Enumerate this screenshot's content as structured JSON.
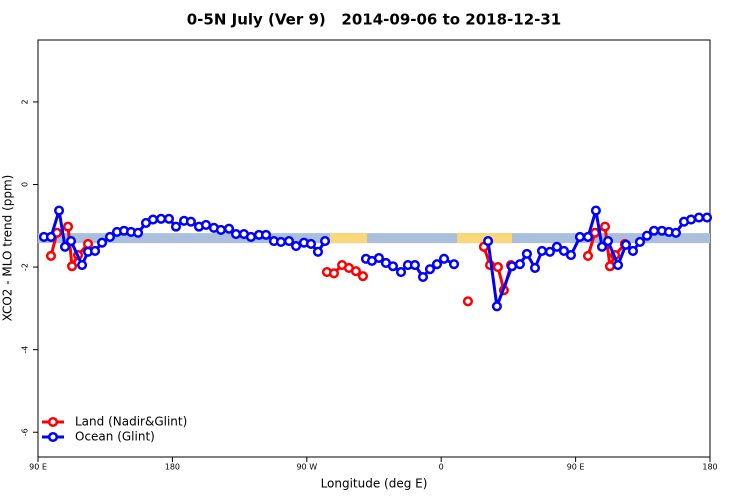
{
  "chart_data": {
    "type": "line",
    "title": "0-5N July (Ver 9)   2014-09-06 to 2018-12-31",
    "x_label": "Longitude (deg E)",
    "y_label": "XCO2 - MLO trend (ppm)",
    "xlim": [
      90,
      540
    ],
    "ylim": [
      -6.6,
      3.5
    ],
    "xticks": [
      {
        "value": 90,
        "label": "90 E"
      },
      180,
      {
        "value": 270,
        "label": "90 W"
      },
      {
        "value": 360,
        "label": "0"
      },
      {
        "value": 450,
        "label": "90 E"
      },
      {
        "value": 540,
        "label": "180"
      }
    ],
    "yticks": [
      2,
      0,
      -2,
      -4,
      -6
    ],
    "legend": "bottom-left",
    "band": {
      "y": -1.3,
      "color": "#a9bfdc",
      "segments": [
        {
          "x": [
            285.5,
            310.3
          ],
          "color": "#f9d77a"
        },
        {
          "x": [
            370.6,
            407.4
          ],
          "color": "#f9d77a"
        }
      ]
    },
    "series": [
      {
        "name": "Land (Nadir&Glint)",
        "color": "#ff0000",
        "x": [
          98.7,
          102.7,
          110.1,
          112.8,
          116.8,
          123.5,
          null,
          283.5,
          288.2,
          293.6,
          298.2,
          302.9,
          307.6,
          null,
          377.9,
          null,
          388.6,
          392.7,
          398.0,
          402.0,
          406.7,
          null,
          458.3,
          463.0,
          469.7,
          473.0,
          476.4,
          483.0
        ],
        "values": [
          -1.73,
          -1.17,
          -1.02,
          -1.98,
          -1.71,
          -1.44,
          null,
          -2.12,
          -2.15,
          -1.95,
          -2.02,
          -2.1,
          -2.22,
          null,
          -2.83,
          null,
          -1.51,
          -1.95,
          -2.0,
          -2.56,
          -1.95,
          null,
          -1.73,
          -1.17,
          -1.02,
          -1.98,
          -1.71,
          -1.44
        ]
      },
      {
        "name": "Ocean (Glint)",
        "color": "#0000ff",
        "x": [
          94.0,
          98.7,
          104.1,
          108.1,
          112.1,
          119.5,
          123.5,
          128.2,
          132.9,
          138.2,
          142.9,
          147.6,
          152.3,
          157.0,
          162.3,
          167.0,
          172.4,
          177.7,
          182.4,
          187.8,
          192.4,
          197.8,
          202.5,
          207.8,
          212.5,
          217.9,
          222.6,
          227.9,
          232.6,
          238.0,
          242.7,
          248.0,
          252.7,
          258.1,
          262.8,
          268.1,
          272.8,
          277.5,
          282.2,
          null,
          309.6,
          313.6,
          318.3,
          323.0,
          327.7,
          333.1,
          337.7,
          342.4,
          347.8,
          352.5,
          357.2,
          361.9,
          368.6,
          null,
          391.4,
          397.3,
          407.4,
          412.7,
          417.4,
          422.8,
          427.5,
          432.8,
          437.5,
          442.2,
          446.9,
          452.9,
          458.3,
          463.6,
          467.7,
          471.7,
          478.4,
          483.7,
          488.4,
          493.1,
          497.8,
          502.5,
          507.8,
          512.5,
          517.2,
          522.6,
          527.3,
          532.6,
          538.0
        ],
        "values": [
          -1.27,
          -1.27,
          -0.63,
          -1.51,
          -1.37,
          -1.95,
          -1.63,
          -1.61,
          -1.41,
          -1.27,
          -1.15,
          -1.12,
          -1.15,
          -1.17,
          -0.93,
          -0.85,
          -0.83,
          -0.83,
          -1.02,
          -0.88,
          -0.9,
          -1.02,
          -0.98,
          -1.05,
          -1.1,
          -1.07,
          -1.2,
          -1.2,
          -1.27,
          -1.22,
          -1.22,
          -1.37,
          -1.39,
          -1.37,
          -1.49,
          -1.41,
          -1.44,
          -1.63,
          -1.37,
          null,
          -1.8,
          -1.85,
          -1.78,
          -1.9,
          -1.98,
          -2.12,
          -1.95,
          -1.95,
          -2.24,
          -2.05,
          -1.93,
          -1.8,
          -1.93,
          null,
          -1.37,
          -2.95,
          -1.98,
          -1.93,
          -1.68,
          -2.02,
          -1.61,
          -1.63,
          -1.51,
          -1.61,
          -1.71,
          -1.27,
          -1.27,
          -0.63,
          -1.51,
          -1.37,
          -1.95,
          -1.46,
          -1.61,
          -1.39,
          -1.24,
          -1.12,
          -1.12,
          -1.15,
          -1.17,
          -0.9,
          -0.85,
          -0.8,
          -0.8
        ]
      }
    ]
  }
}
